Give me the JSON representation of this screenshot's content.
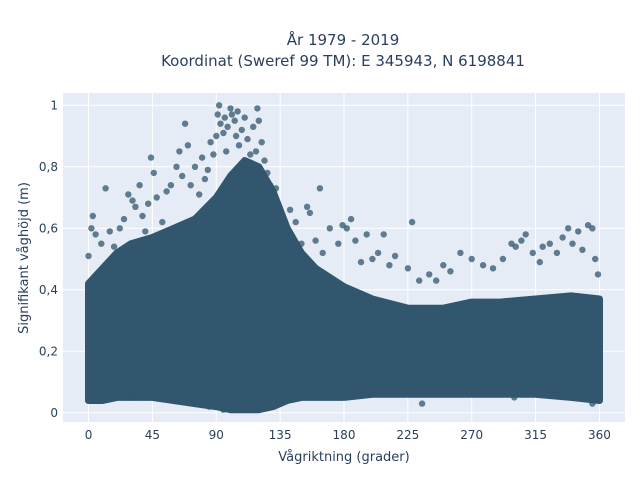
{
  "chart_data": {
    "type": "scatter",
    "title_lines": [
      "År 1979 - 2019",
      "Koordinat (Sweref 99 TM): E 345943, N 6198841"
    ],
    "xlabel": "Vågriktning (grader)",
    "ylabel": "Signifikant våghöjd (m)",
    "xlim": [
      -18,
      378
    ],
    "ylim": [
      -0.03,
      1.04
    ],
    "x_ticks": [
      0,
      45,
      90,
      135,
      180,
      225,
      270,
      315,
      360
    ],
    "x_tick_labels": [
      "0",
      "45",
      "90",
      "135",
      "180",
      "225",
      "270",
      "315",
      "360"
    ],
    "y_ticks": [
      0,
      0.2,
      0.4,
      0.6,
      0.8,
      1.0
    ],
    "y_tick_labels": [
      "0",
      "0,2",
      "0,4",
      "0,6",
      "0,8",
      "1"
    ],
    "grid": true,
    "legend": false,
    "colors": {
      "background": "#e5ecf6",
      "grid": "#ffffff",
      "marker": "#31566d",
      "text": "#2a3f5f"
    },
    "cloud_envelope": {
      "direction_deg": [
        0,
        10,
        20,
        30,
        45,
        60,
        75,
        90,
        100,
        110,
        120,
        130,
        140,
        150,
        160,
        180,
        200,
        225,
        250,
        270,
        290,
        315,
        340,
        360
      ],
      "upper_m": [
        0.42,
        0.47,
        0.52,
        0.55,
        0.57,
        0.6,
        0.63,
        0.7,
        0.77,
        0.82,
        0.8,
        0.72,
        0.6,
        0.52,
        0.47,
        0.41,
        0.37,
        0.34,
        0.34,
        0.36,
        0.36,
        0.37,
        0.38,
        0.37
      ],
      "lower_m": [
        0.04,
        0.04,
        0.05,
        0.05,
        0.05,
        0.04,
        0.03,
        0.02,
        0.01,
        0.01,
        0.01,
        0.02,
        0.04,
        0.05,
        0.05,
        0.05,
        0.06,
        0.06,
        0.06,
        0.06,
        0.06,
        0.06,
        0.05,
        0.04
      ]
    },
    "points": [
      {
        "x": 0,
        "y": 0.51
      },
      {
        "x": 2,
        "y": 0.6
      },
      {
        "x": 3,
        "y": 0.64
      },
      {
        "x": 5,
        "y": 0.58
      },
      {
        "x": 9,
        "y": 0.55
      },
      {
        "x": 12,
        "y": 0.73
      },
      {
        "x": 15,
        "y": 0.59
      },
      {
        "x": 18,
        "y": 0.54
      },
      {
        "x": 22,
        "y": 0.6
      },
      {
        "x": 25,
        "y": 0.63
      },
      {
        "x": 28,
        "y": 0.71
      },
      {
        "x": 31,
        "y": 0.69
      },
      {
        "x": 33,
        "y": 0.67
      },
      {
        "x": 36,
        "y": 0.74
      },
      {
        "x": 38,
        "y": 0.64
      },
      {
        "x": 40,
        "y": 0.59
      },
      {
        "x": 42,
        "y": 0.68
      },
      {
        "x": 44,
        "y": 0.83
      },
      {
        "x": 46,
        "y": 0.78
      },
      {
        "x": 48,
        "y": 0.7
      },
      {
        "x": 52,
        "y": 0.62
      },
      {
        "x": 55,
        "y": 0.72
      },
      {
        "x": 58,
        "y": 0.74
      },
      {
        "x": 62,
        "y": 0.8
      },
      {
        "x": 64,
        "y": 0.85
      },
      {
        "x": 66,
        "y": 0.77
      },
      {
        "x": 68,
        "y": 0.94
      },
      {
        "x": 70,
        "y": 0.87
      },
      {
        "x": 72,
        "y": 0.74
      },
      {
        "x": 75,
        "y": 0.8
      },
      {
        "x": 78,
        "y": 0.71
      },
      {
        "x": 80,
        "y": 0.83
      },
      {
        "x": 82,
        "y": 0.76
      },
      {
        "x": 84,
        "y": 0.79
      },
      {
        "x": 86,
        "y": 0.88
      },
      {
        "x": 88,
        "y": 0.84
      },
      {
        "x": 90,
        "y": 0.9
      },
      {
        "x": 91,
        "y": 0.97
      },
      {
        "x": 92,
        "y": 1.0
      },
      {
        "x": 93,
        "y": 0.94
      },
      {
        "x": 95,
        "y": 0.91
      },
      {
        "x": 96,
        "y": 0.96
      },
      {
        "x": 97,
        "y": 0.85
      },
      {
        "x": 98,
        "y": 0.93
      },
      {
        "x": 100,
        "y": 0.99
      },
      {
        "x": 101,
        "y": 0.97
      },
      {
        "x": 103,
        "y": 0.95
      },
      {
        "x": 104,
        "y": 0.9
      },
      {
        "x": 105,
        "y": 0.98
      },
      {
        "x": 106,
        "y": 0.87
      },
      {
        "x": 108,
        "y": 0.92
      },
      {
        "x": 110,
        "y": 0.96
      },
      {
        "x": 112,
        "y": 0.89
      },
      {
        "x": 114,
        "y": 0.84
      },
      {
        "x": 116,
        "y": 0.93
      },
      {
        "x": 118,
        "y": 0.85
      },
      {
        "x": 119,
        "y": 0.99
      },
      {
        "x": 120,
        "y": 0.95
      },
      {
        "x": 122,
        "y": 0.88
      },
      {
        "x": 124,
        "y": 0.82
      },
      {
        "x": 126,
        "y": 0.78
      },
      {
        "x": 128,
        "y": 0.74
      },
      {
        "x": 130,
        "y": 0.68
      },
      {
        "x": 132,
        "y": 0.73
      },
      {
        "x": 134,
        "y": 0.65
      },
      {
        "x": 136,
        "y": 0.6
      },
      {
        "x": 140,
        "y": 0.58
      },
      {
        "x": 142,
        "y": 0.66
      },
      {
        "x": 146,
        "y": 0.62
      },
      {
        "x": 150,
        "y": 0.55
      },
      {
        "x": 154,
        "y": 0.67
      },
      {
        "x": 156,
        "y": 0.65
      },
      {
        "x": 160,
        "y": 0.56
      },
      {
        "x": 163,
        "y": 0.73
      },
      {
        "x": 165,
        "y": 0.52
      },
      {
        "x": 170,
        "y": 0.6
      },
      {
        "x": 176,
        "y": 0.55
      },
      {
        "x": 179,
        "y": 0.61
      },
      {
        "x": 182,
        "y": 0.6
      },
      {
        "x": 185,
        "y": 0.63
      },
      {
        "x": 188,
        "y": 0.56
      },
      {
        "x": 192,
        "y": 0.49
      },
      {
        "x": 196,
        "y": 0.58
      },
      {
        "x": 200,
        "y": 0.5
      },
      {
        "x": 204,
        "y": 0.52
      },
      {
        "x": 208,
        "y": 0.58
      },
      {
        "x": 212,
        "y": 0.48
      },
      {
        "x": 216,
        "y": 0.51
      },
      {
        "x": 225,
        "y": 0.47
      },
      {
        "x": 228,
        "y": 0.62
      },
      {
        "x": 233,
        "y": 0.43
      },
      {
        "x": 240,
        "y": 0.45
      },
      {
        "x": 245,
        "y": 0.43
      },
      {
        "x": 250,
        "y": 0.48
      },
      {
        "x": 255,
        "y": 0.46
      },
      {
        "x": 262,
        "y": 0.52
      },
      {
        "x": 270,
        "y": 0.5
      },
      {
        "x": 278,
        "y": 0.48
      },
      {
        "x": 285,
        "y": 0.47
      },
      {
        "x": 292,
        "y": 0.5
      },
      {
        "x": 298,
        "y": 0.55
      },
      {
        "x": 301,
        "y": 0.54
      },
      {
        "x": 305,
        "y": 0.56
      },
      {
        "x": 308,
        "y": 0.58
      },
      {
        "x": 313,
        "y": 0.52
      },
      {
        "x": 318,
        "y": 0.49
      },
      {
        "x": 320,
        "y": 0.54
      },
      {
        "x": 325,
        "y": 0.55
      },
      {
        "x": 330,
        "y": 0.52
      },
      {
        "x": 334,
        "y": 0.57
      },
      {
        "x": 338,
        "y": 0.6
      },
      {
        "x": 341,
        "y": 0.55
      },
      {
        "x": 345,
        "y": 0.59
      },
      {
        "x": 348,
        "y": 0.53
      },
      {
        "x": 352,
        "y": 0.61
      },
      {
        "x": 355,
        "y": 0.6
      },
      {
        "x": 357,
        "y": 0.5
      },
      {
        "x": 359,
        "y": 0.45
      },
      {
        "x": 10,
        "y": 0.06
      },
      {
        "x": 30,
        "y": 0.05
      },
      {
        "x": 60,
        "y": 0.04
      },
      {
        "x": 85,
        "y": 0.02
      },
      {
        "x": 95,
        "y": 0.01
      },
      {
        "x": 105,
        "y": 0.01
      },
      {
        "x": 115,
        "y": 0.01
      },
      {
        "x": 125,
        "y": 0.02
      },
      {
        "x": 200,
        "y": 0.06
      },
      {
        "x": 235,
        "y": 0.03
      },
      {
        "x": 300,
        "y": 0.05
      },
      {
        "x": 355,
        "y": 0.03
      }
    ]
  }
}
